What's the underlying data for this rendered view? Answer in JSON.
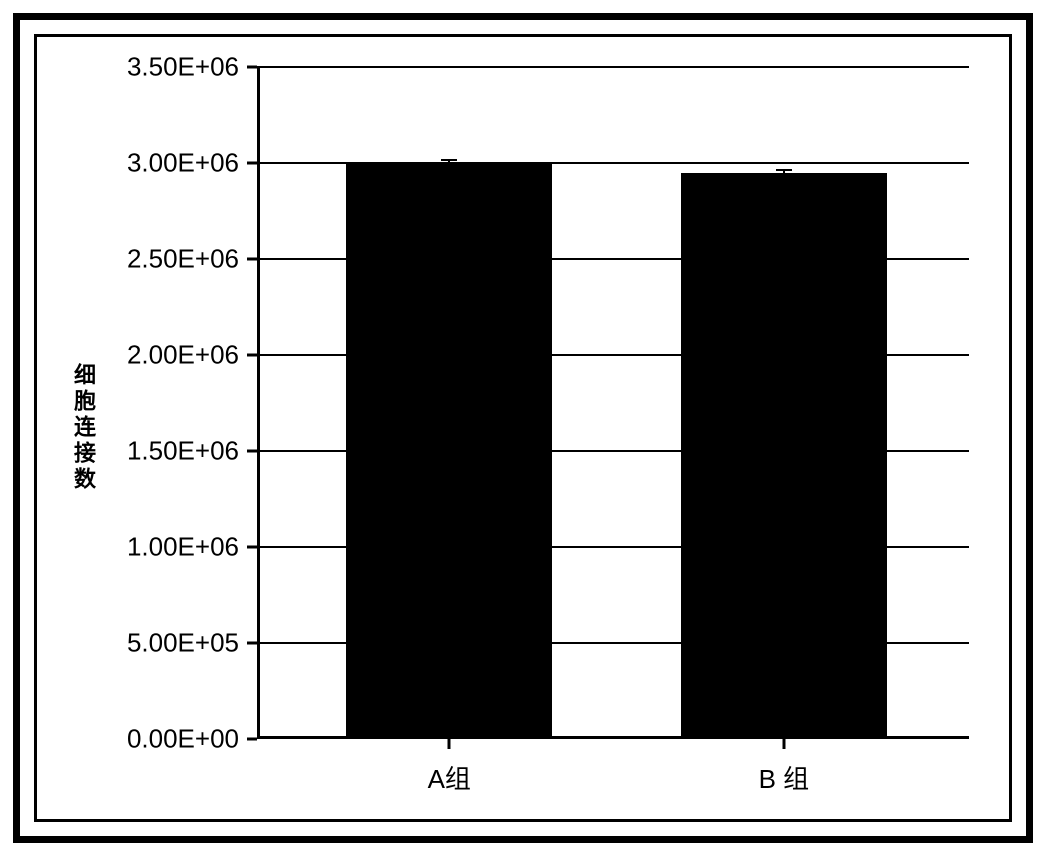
{
  "chart": {
    "type": "bar",
    "categories": [
      "A组",
      "B 组"
    ],
    "values": [
      3000000,
      2950000
    ],
    "error_values": [
      20000,
      20000
    ],
    "bar_colors": [
      "#000000",
      "#000000"
    ],
    "bar_width_pct": 29,
    "bar_positions_pct": [
      27,
      74
    ],
    "ylabel": "细胞连接数",
    "ylim": [
      0,
      3500000
    ],
    "ytick_step": 500000,
    "ytick_labels": [
      "0.00E+00",
      "5.00E+05",
      "1.00E+06",
      "1.50E+06",
      "2.00E+06",
      "2.50E+06",
      "3.00E+06",
      "3.50E+06"
    ],
    "background_color": "#ffffff",
    "grid_color": "#000000",
    "border_color": "#000000",
    "tick_fontsize": 26,
    "label_fontsize": 22,
    "xlabel_fontsize": 26
  }
}
